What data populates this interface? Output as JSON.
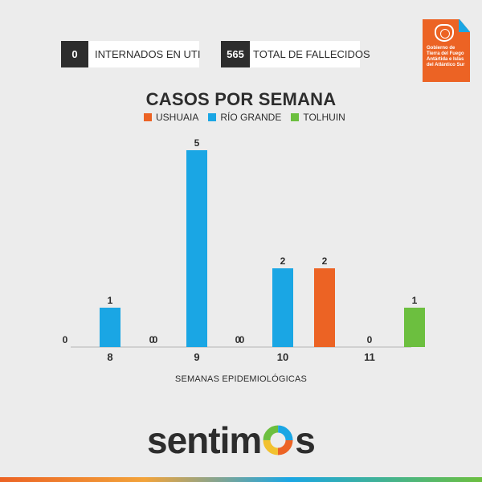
{
  "stats": {
    "uti": {
      "value": "0",
      "label": "INTERNADOS EN UTI"
    },
    "fallecidos": {
      "value": "565",
      "label": "TOTAL DE FALLECIDOS"
    }
  },
  "logo": {
    "text": "Gobierno de\nTierra del Fuego\nAntártida e Islas\ndel Atlántico Sur"
  },
  "brand": {
    "left": "sentim",
    "right": "s"
  },
  "colors": {
    "ushuaia": "#ec6324",
    "rio_grande": "#1aa6e4",
    "tolhuin": "#6cbf3f"
  },
  "chart_data": {
    "type": "bar",
    "title": "CASOS POR SEMANA",
    "xlabel": "SEMANAS EPIDEMIOLÓGICAS",
    "ylabel": "",
    "categories": [
      "8",
      "9",
      "10",
      "11"
    ],
    "ylim": [
      0,
      5
    ],
    "legend_position": "top",
    "series": [
      {
        "name": "USHUAIA",
        "color": "#ec6324",
        "values": [
          0,
          0,
          0,
          2
        ]
      },
      {
        "name": "RÍO GRANDE",
        "color": "#1aa6e4",
        "values": [
          1,
          5,
          2,
          0
        ]
      },
      {
        "name": "TOLHUIN",
        "color": "#6cbf3f",
        "values": [
          0,
          0,
          0,
          1
        ]
      }
    ]
  }
}
